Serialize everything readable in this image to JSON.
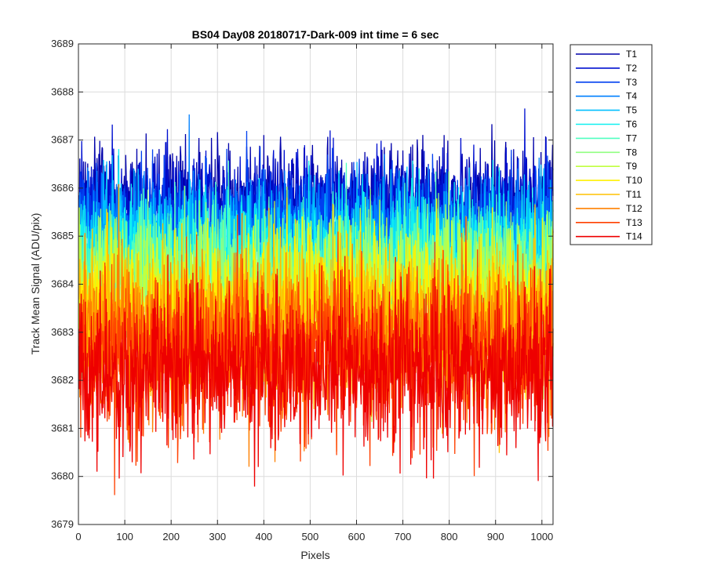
{
  "chart_data": {
    "type": "line",
    "title": "BS04 Day08 20180717-Dark-009 int time = 6 sec",
    "xlabel": "Pixels",
    "ylabel": "Track Mean Signal (ADU/pix)",
    "xlim": [
      0,
      1024
    ],
    "ylim": [
      3679,
      3689
    ],
    "xticks": [
      "0",
      "100",
      "200",
      "300",
      "400",
      "500",
      "600",
      "700",
      "800",
      "900",
      "1000"
    ],
    "yticks": [
      "3679",
      "3680",
      "3681",
      "3682",
      "3683",
      "3684",
      "3685",
      "3686",
      "3687",
      "3688",
      "3689"
    ],
    "grid": true,
    "legend_position": "outside-top-right",
    "x_range": [
      1,
      1024
    ],
    "series": [
      {
        "name": "T1",
        "color": "#0000AA",
        "mean": 3685.8,
        "stdev": 0.55
      },
      {
        "name": "T2",
        "color": "#0010D0",
        "mean": 3685.6,
        "stdev": 0.58
      },
      {
        "name": "T3",
        "color": "#0040F0",
        "mean": 3685.3,
        "stdev": 0.6
      },
      {
        "name": "T4",
        "color": "#0080FF",
        "mean": 3685.0,
        "stdev": 0.62
      },
      {
        "name": "T5",
        "color": "#00BFFF",
        "mean": 3684.8,
        "stdev": 0.65
      },
      {
        "name": "T6",
        "color": "#10F0F0",
        "mean": 3684.6,
        "stdev": 0.68
      },
      {
        "name": "T7",
        "color": "#50FFC0",
        "mean": 3684.3,
        "stdev": 0.7
      },
      {
        "name": "T8",
        "color": "#90FF80",
        "mean": 3684.1,
        "stdev": 0.72
      },
      {
        "name": "T9",
        "color": "#C0FF40",
        "mean": 3683.8,
        "stdev": 0.75
      },
      {
        "name": "T10",
        "color": "#FFF000",
        "mean": 3683.5,
        "stdev": 0.78
      },
      {
        "name": "T11",
        "color": "#FFC000",
        "mean": 3683.2,
        "stdev": 0.8
      },
      {
        "name": "T12",
        "color": "#FF8000",
        "mean": 3682.9,
        "stdev": 0.82
      },
      {
        "name": "T13",
        "color": "#FF4000",
        "mean": 3682.5,
        "stdev": 0.85
      },
      {
        "name": "T14",
        "color": "#EE0000",
        "mean": 3682.2,
        "stdev": 0.88
      }
    ]
  }
}
